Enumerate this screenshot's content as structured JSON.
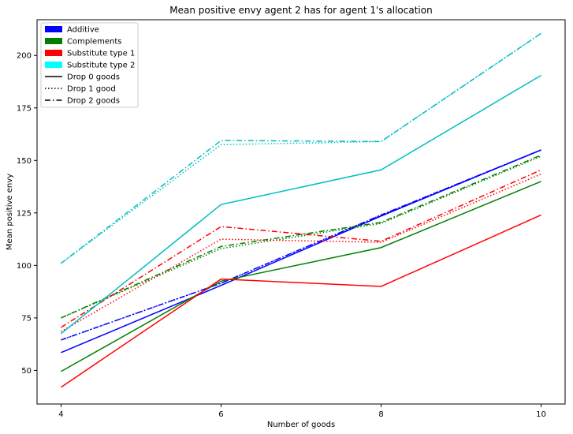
{
  "chart_data": {
    "type": "line",
    "title": "Mean positive envy agent 2 has for agent 1's allocation",
    "xlabel": "Number of goods",
    "ylabel": "Mean positive envy",
    "x": [
      4,
      6,
      8,
      10
    ],
    "xticks": [
      4,
      6,
      8,
      10
    ],
    "yticks": [
      50,
      75,
      100,
      125,
      150,
      175,
      200
    ],
    "xlim": [
      3.7,
      10.3
    ],
    "ylim": [
      34,
      217
    ],
    "grid": false,
    "legend_position": "top-left",
    "colors": {
      "Additive": "#0000ff",
      "Complements": "#008000",
      "Substitute type 1": "#ff0000",
      "Substitute type 2": "#00bfbf"
    },
    "legend": [
      {
        "label": "Additive",
        "kind": "patch",
        "color": "#0000ff"
      },
      {
        "label": "Complements",
        "kind": "patch",
        "color": "#008000"
      },
      {
        "label": "Substitute type 1",
        "kind": "patch",
        "color": "#ff0000"
      },
      {
        "label": "Substitute type 2",
        "kind": "patch",
        "color": "#00ffff"
      },
      {
        "label": "Drop 0 goods",
        "kind": "line",
        "style": "solid"
      },
      {
        "label": "Drop 1 good",
        "kind": "line",
        "style": "dotted"
      },
      {
        "label": "Drop 2 goods",
        "kind": "line",
        "style": "dashdot"
      }
    ],
    "series": [
      {
        "group": "Additive",
        "drop": 0,
        "style": "solid",
        "values": [
          58.5,
          90.5,
          123.5,
          155.0
        ]
      },
      {
        "group": "Additive",
        "drop": 1,
        "style": "dotted",
        "values": [
          64.5,
          91.5,
          124.0,
          155.0
        ]
      },
      {
        "group": "Additive",
        "drop": 2,
        "style": "dashdot",
        "values": [
          64.5,
          91.5,
          124.0,
          155.0
        ]
      },
      {
        "group": "Complements",
        "drop": 0,
        "style": "solid",
        "values": [
          49.5,
          92.5,
          108.5,
          140.0
        ]
      },
      {
        "group": "Complements",
        "drop": 1,
        "style": "dotted",
        "values": [
          75.0,
          108.0,
          120.0,
          152.0
        ]
      },
      {
        "group": "Complements",
        "drop": 2,
        "style": "dashdot",
        "values": [
          75.0,
          109.0,
          120.5,
          152.5
        ]
      },
      {
        "group": "Substitute type 1",
        "drop": 0,
        "style": "solid",
        "values": [
          42.0,
          93.5,
          90.0,
          124.0
        ]
      },
      {
        "group": "Substitute type 1",
        "drop": 1,
        "style": "dotted",
        "values": [
          68.5,
          112.5,
          111.0,
          143.5
        ]
      },
      {
        "group": "Substitute type 1",
        "drop": 2,
        "style": "dashdot",
        "values": [
          70.5,
          118.5,
          111.5,
          145.5
        ]
      },
      {
        "group": "Substitute type 2",
        "drop": 0,
        "style": "solid",
        "values": [
          67.5,
          129.0,
          145.5,
          190.5
        ]
      },
      {
        "group": "Substitute type 2",
        "drop": 1,
        "style": "dotted",
        "values": [
          101.0,
          157.5,
          159.0,
          210.5
        ]
      },
      {
        "group": "Substitute type 2",
        "drop": 2,
        "style": "dashdot",
        "values": [
          101.0,
          159.5,
          159.0,
          210.5
        ]
      }
    ]
  }
}
